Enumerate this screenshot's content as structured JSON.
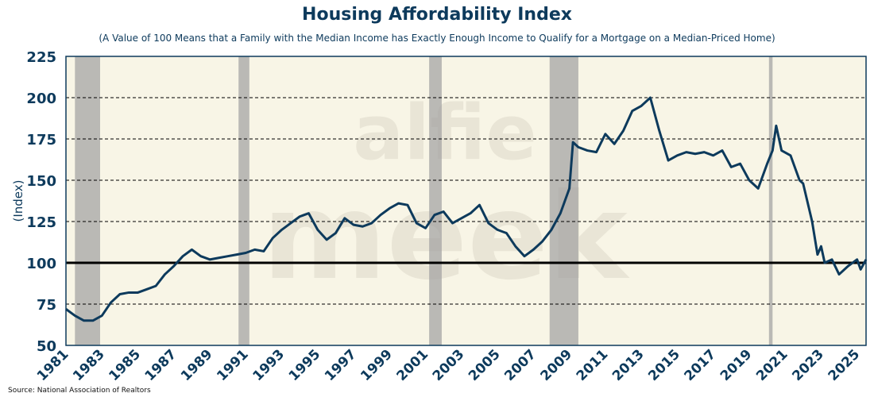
{
  "chart_data": {
    "type": "line",
    "title": "Housing Affordability Index",
    "subtitle": "(A Value of 100 Means that a Family with the Median Income has Exactly Enough Income to Qualify for a Mortgage on a Median-Priced Home)",
    "ylabel": "(Index)",
    "xlabel": "",
    "ylim": [
      50,
      225
    ],
    "xlim": [
      1981,
      2025.5
    ],
    "yticks": [
      50,
      75,
      100,
      125,
      150,
      175,
      200,
      225
    ],
    "xticks": [
      1981,
      1983,
      1985,
      1987,
      1989,
      1991,
      1993,
      1995,
      1997,
      1999,
      2001,
      2003,
      2005,
      2007,
      2009,
      2011,
      2013,
      2015,
      2017,
      2019,
      2021,
      2023,
      2025
    ],
    "reference_line": 100,
    "grid": "horizontal dashed",
    "watermark": "alfie meek",
    "source": "Source: National Association of Realtors",
    "recessions": [
      [
        1981.5,
        1982.9
      ],
      [
        1990.6,
        1991.2
      ],
      [
        2001.2,
        2001.9
      ],
      [
        2007.9,
        2009.5
      ],
      [
        2020.1,
        2020.3
      ]
    ],
    "series": [
      {
        "name": "Housing Affordability Index",
        "color": "#0d3a5c",
        "x": [
          1981,
          1981.5,
          1982,
          1982.5,
          1983,
          1983.5,
          1984,
          1984.5,
          1985,
          1985.5,
          1986,
          1986.5,
          1987,
          1987.5,
          1988,
          1988.5,
          1989,
          1989.5,
          1990,
          1990.5,
          1991,
          1991.5,
          1992,
          1992.5,
          1993,
          1993.5,
          1994,
          1994.5,
          1995,
          1995.5,
          1996,
          1996.5,
          1997,
          1997.5,
          1998,
          1998.5,
          1999,
          1999.5,
          2000,
          2000.5,
          2001,
          2001.5,
          2002,
          2002.5,
          2003,
          2003.5,
          2004,
          2004.5,
          2005,
          2005.5,
          2006,
          2006.5,
          2007,
          2007.5,
          2008,
          2008.5,
          2009,
          2009.2,
          2009.5,
          2010,
          2010.5,
          2011,
          2011.5,
          2012,
          2012.5,
          2013,
          2013.5,
          2014,
          2014.5,
          2015,
          2015.5,
          2016,
          2016.5,
          2017,
          2017.5,
          2018,
          2018.5,
          2019,
          2019.5,
          2020,
          2020.3,
          2020.5,
          2020.8,
          2021.3,
          2021.8,
          2022,
          2022.5,
          2022.8,
          2023,
          2023.2,
          2023.6,
          2024,
          2024.5,
          2025,
          2025.2,
          2025.5
        ],
        "values": [
          72,
          68,
          65,
          65,
          68,
          76,
          81,
          82,
          82,
          84,
          86,
          93,
          98,
          104,
          108,
          104,
          102,
          103,
          104,
          105,
          106,
          108,
          107,
          115,
          120,
          124,
          128,
          130,
          120,
          114,
          118,
          127,
          123,
          122,
          124,
          129,
          133,
          136,
          135,
          124,
          121,
          129,
          131,
          124,
          127,
          130,
          135,
          124,
          120,
          118,
          110,
          104,
          108,
          113,
          120,
          130,
          145,
          173,
          170,
          168,
          167,
          178,
          172,
          180,
          192,
          195,
          200,
          180,
          162,
          165,
          167,
          166,
          167,
          165,
          168,
          158,
          160,
          150,
          145,
          160,
          168,
          183,
          168,
          165,
          150,
          148,
          125,
          105,
          110,
          100,
          102,
          93,
          98,
          102,
          96,
          102
        ]
      }
    ]
  }
}
